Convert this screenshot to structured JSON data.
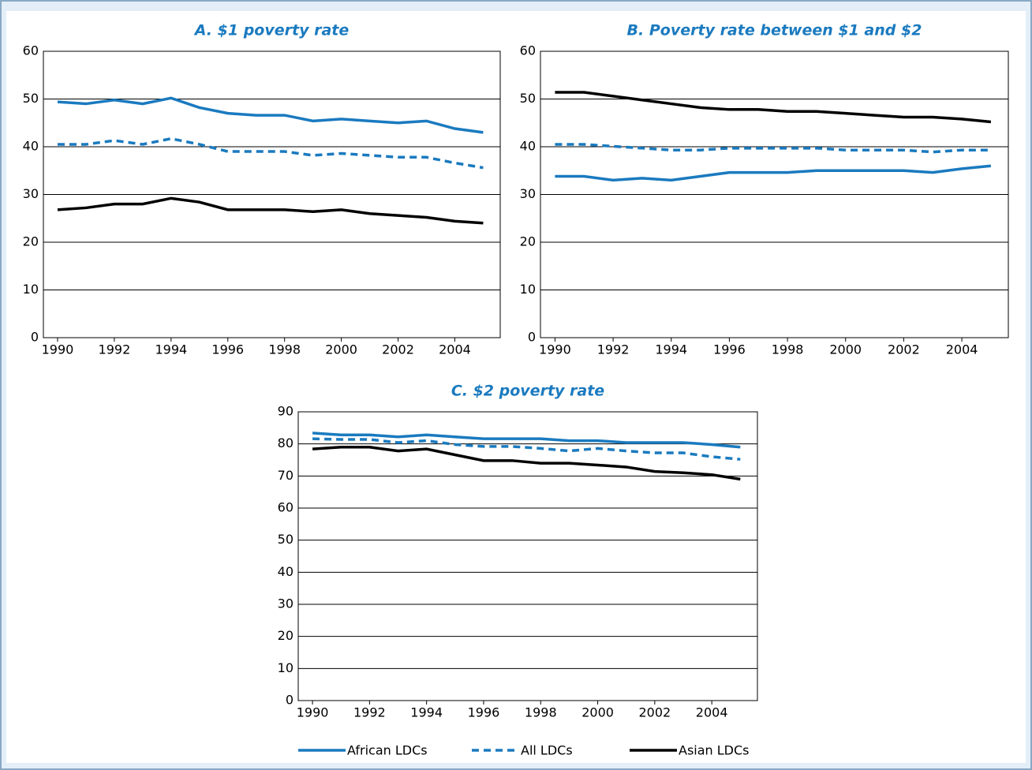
{
  "chart_data": [
    {
      "type": "line",
      "title": "A.  $1 poverty rate",
      "x": [
        1990,
        1991,
        1992,
        1993,
        1994,
        1995,
        1996,
        1997,
        1998,
        1999,
        2000,
        2001,
        2002,
        2003,
        2004,
        2005
      ],
      "xlim": [
        1989.5,
        2005.6
      ],
      "xticks": [
        1990,
        1992,
        1994,
        1996,
        1998,
        2000,
        2002,
        2004
      ],
      "ylim": [
        0,
        60
      ],
      "yticks": [
        0,
        10,
        20,
        30,
        40,
        50,
        60
      ],
      "grid": true,
      "series": [
        {
          "name": "African LDCs",
          "color": "#1a7abf",
          "dashed": false,
          "values": [
            49.4,
            49,
            49.8,
            49,
            50.2,
            48.2,
            47,
            46.6,
            46.6,
            45.4,
            45.8,
            45.4,
            45,
            45.4,
            43.8,
            43
          ]
        },
        {
          "name": "All LDCs",
          "color": "#1a7abf",
          "dashed": true,
          "values": [
            40.5,
            40.5,
            41.3,
            40.5,
            41.7,
            40.5,
            39,
            39,
            39,
            38.2,
            38.6,
            38.2,
            37.8,
            37.8,
            36.6,
            35.6
          ]
        },
        {
          "name": "Asian LDCs",
          "color": "#000000",
          "dashed": false,
          "values": [
            26.8,
            27.2,
            28,
            28,
            29.2,
            28.4,
            26.8,
            26.8,
            26.8,
            26.4,
            26.8,
            26,
            25.6,
            25.2,
            24.4,
            24
          ]
        }
      ]
    },
    {
      "type": "line",
      "title": "B.  Poverty rate between $1 and $2",
      "x": [
        1990,
        1991,
        1992,
        1993,
        1994,
        1995,
        1996,
        1997,
        1998,
        1999,
        2000,
        2001,
        2002,
        2003,
        2004,
        2005
      ],
      "xlim": [
        1989.5,
        2005.6
      ],
      "xticks": [
        1990,
        1992,
        1994,
        1996,
        1998,
        2000,
        2002,
        2004
      ],
      "ylim": [
        0,
        60
      ],
      "yticks": [
        0,
        10,
        20,
        30,
        40,
        50,
        60
      ],
      "grid": true,
      "series": [
        {
          "name": "African LDCs",
          "color": "#1a7abf",
          "dashed": false,
          "values": [
            33.8,
            33.8,
            33,
            33.4,
            33,
            33.8,
            34.6,
            34.6,
            34.6,
            35,
            35,
            35,
            35,
            34.6,
            35.4,
            36
          ]
        },
        {
          "name": "All LDCs",
          "color": "#1a7abf",
          "dashed": true,
          "values": [
            40.5,
            40.5,
            40.1,
            39.7,
            39.3,
            39.3,
            39.7,
            39.7,
            39.7,
            39.7,
            39.3,
            39.3,
            39.3,
            38.9,
            39.3,
            39.3
          ]
        },
        {
          "name": "Asian LDCs",
          "color": "#000000",
          "dashed": false,
          "values": [
            51.4,
            51.4,
            50.6,
            49.8,
            49,
            48.2,
            47.8,
            47.8,
            47.4,
            47.4,
            47,
            46.6,
            46.2,
            46.2,
            45.8,
            45.2
          ]
        }
      ]
    },
    {
      "type": "line",
      "title": "C.  $2 poverty rate",
      "x": [
        1990,
        1991,
        1992,
        1993,
        1994,
        1995,
        1996,
        1997,
        1998,
        1999,
        2000,
        2001,
        2002,
        2003,
        2004,
        2005
      ],
      "xlim": [
        1989.5,
        2005.6
      ],
      "xticks": [
        1990,
        1992,
        1994,
        1996,
        1998,
        2000,
        2002,
        2004
      ],
      "ylim": [
        0,
        90
      ],
      "yticks": [
        0,
        10,
        20,
        30,
        40,
        50,
        60,
        70,
        80,
        90
      ],
      "grid": true,
      "series": [
        {
          "name": "African LDCs",
          "color": "#1a7abf",
          "dashed": false,
          "values": [
            83.4,
            82.8,
            82.8,
            82.2,
            82.8,
            82.2,
            81.6,
            81.6,
            81.6,
            81,
            81,
            80.4,
            80.4,
            80.4,
            79.8,
            79
          ]
        },
        {
          "name": "All LDCs",
          "color": "#1a7abf",
          "dashed": true,
          "values": [
            81.6,
            81.4,
            81.4,
            80.4,
            81,
            79.8,
            79.2,
            79.2,
            78.6,
            77.8,
            78.6,
            77.8,
            77.2,
            77.2,
            76,
            75.2
          ]
        },
        {
          "name": "Asian LDCs",
          "color": "#000000",
          "dashed": false,
          "values": [
            78.4,
            79,
            79,
            77.8,
            78.4,
            76.6,
            74.8,
            74.8,
            74,
            74,
            73.4,
            72.8,
            71.4,
            71,
            70.4,
            69
          ]
        }
      ]
    }
  ]
}
